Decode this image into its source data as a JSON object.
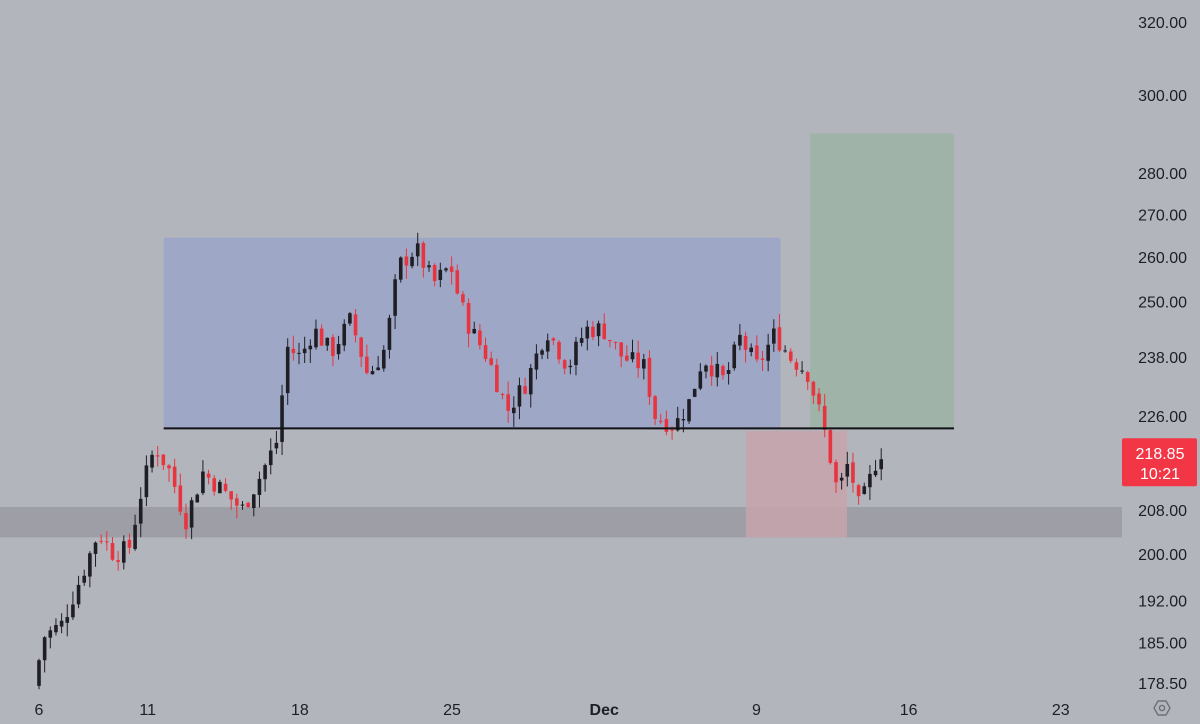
{
  "chart_data": {
    "type": "candlestick",
    "y_scale": "log",
    "ylim": [
      175,
      330
    ],
    "y_ticks": [
      "320.00",
      "300.00",
      "280.00",
      "270.00",
      "260.00",
      "250.00",
      "238.00",
      "226.00",
      "208.00",
      "200.00",
      "192.00",
      "185.00",
      "178.50"
    ],
    "x_ticks": [
      {
        "label": "6",
        "bold": false
      },
      {
        "label": "11",
        "bold": false
      },
      {
        "label": "18",
        "bold": false
      },
      {
        "label": "25",
        "bold": false
      },
      {
        "label": "Dec",
        "bold": true
      },
      {
        "label": "9",
        "bold": false
      },
      {
        "label": "16",
        "bold": false
      },
      {
        "label": "23",
        "bold": false
      }
    ],
    "current_price": {
      "price": "218.85",
      "countdown": "10:21",
      "color": "#f23645"
    },
    "up_color": "#1e1e24",
    "down_color": "#e8343f",
    "horizontal_line": {
      "price": 223.5,
      "from": "11",
      "to": "16"
    },
    "support_zone": {
      "low": 203,
      "high": 208.5
    },
    "range_box": {
      "low": 223.5,
      "high": 264.5,
      "from": "11",
      "to": "9",
      "color": "#9aa6c8"
    },
    "target_box": {
      "low": 223.5,
      "high": 290,
      "color": "#9fb3a8"
    },
    "stop_box": {
      "low": 203,
      "high": 223,
      "color": "#c7a3ab"
    },
    "price_path": [
      [
        6,
        178
      ],
      [
        6.5,
        186
      ],
      [
        7.3,
        188
      ],
      [
        8.2,
        196
      ],
      [
        9,
        204
      ],
      [
        9.7,
        200
      ],
      [
        10.4,
        201
      ],
      [
        11,
        212
      ],
      [
        11.6,
        220
      ],
      [
        12.3,
        215
      ],
      [
        13,
        206
      ],
      [
        13.8,
        215
      ],
      [
        14.6,
        212
      ],
      [
        15.6,
        208
      ],
      [
        16.4,
        214
      ],
      [
        17.2,
        221
      ],
      [
        17.7,
        240
      ],
      [
        18.3,
        238
      ],
      [
        18.9,
        244
      ],
      [
        19.7,
        239
      ],
      [
        20.6,
        246
      ],
      [
        21.4,
        234
      ],
      [
        22.2,
        240
      ],
      [
        22.8,
        258
      ],
      [
        23.6,
        262
      ],
      [
        24.4,
        254
      ],
      [
        25.2,
        258
      ],
      [
        25.6,
        250
      ],
      [
        26.1,
        244
      ],
      [
        26.9,
        238
      ],
      [
        27.8,
        227
      ],
      [
        28.7,
        233
      ],
      [
        29.6,
        244
      ],
      [
        30.6,
        236
      ],
      [
        31.4,
        244
      ],
      [
        32.2,
        244
      ],
      [
        33.1,
        238
      ],
      [
        34.1,
        236
      ],
      [
        34.6,
        226
      ],
      [
        35.5,
        224
      ],
      [
        36.2,
        229
      ],
      [
        36.8,
        238
      ],
      [
        37.8,
        233
      ],
      [
        38.5,
        242
      ],
      [
        39.3,
        236
      ],
      [
        40.1,
        243
      ],
      [
        40.8,
        238
      ],
      [
        41.6,
        235
      ],
      [
        42.2,
        226
      ],
      [
        42.5,
        221
      ],
      [
        43,
        211
      ],
      [
        43.5,
        217
      ],
      [
        44,
        208
      ],
      [
        44.6,
        215
      ],
      [
        44.9,
        219
      ]
    ]
  }
}
